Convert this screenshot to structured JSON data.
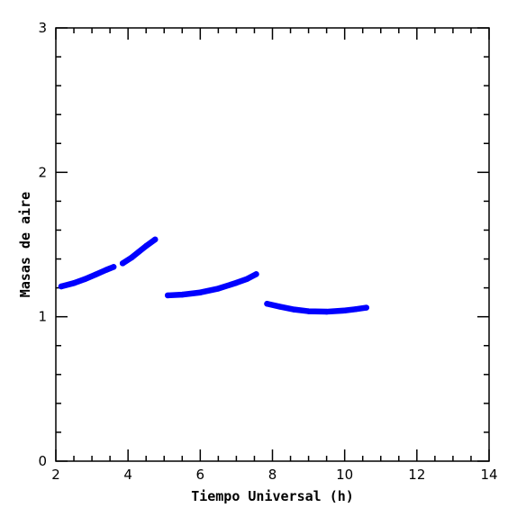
{
  "chart_data": {
    "type": "scatter",
    "title": "",
    "xlabel": "Tiempo Universal (h)",
    "ylabel": "Masas de aire",
    "xlim": [
      2,
      14
    ],
    "ylim": [
      0,
      3
    ],
    "x_major_ticks": [
      2,
      4,
      6,
      8,
      10,
      12,
      14
    ],
    "x_minor_step": 0.5,
    "y_major_ticks": [
      0,
      1,
      2,
      3
    ],
    "y_minor_step": 0.2,
    "grid": false,
    "legend": "none",
    "marker_color": "#0000ff",
    "series": [
      {
        "points": [
          [
            2.15,
            1.21
          ],
          [
            2.5,
            1.233
          ],
          [
            2.8,
            1.26
          ],
          [
            3.1,
            1.292
          ],
          [
            3.4,
            1.325
          ],
          [
            3.6,
            1.345
          ]
        ]
      },
      {
        "points": [
          [
            3.85,
            1.37
          ],
          [
            4.1,
            1.41
          ],
          [
            4.3,
            1.45
          ],
          [
            4.5,
            1.49
          ],
          [
            4.75,
            1.535
          ]
        ]
      },
      {
        "points": [
          [
            5.1,
            1.148
          ],
          [
            5.5,
            1.153
          ],
          [
            6.0,
            1.168
          ],
          [
            6.5,
            1.195
          ],
          [
            7.0,
            1.235
          ],
          [
            7.3,
            1.262
          ],
          [
            7.55,
            1.295
          ]
        ]
      },
      {
        "points": [
          [
            7.85,
            1.09
          ],
          [
            8.2,
            1.07
          ],
          [
            8.6,
            1.05
          ],
          [
            9.0,
            1.038
          ],
          [
            9.5,
            1.035
          ],
          [
            10.0,
            1.043
          ],
          [
            10.3,
            1.052
          ],
          [
            10.6,
            1.063
          ]
        ]
      }
    ]
  }
}
